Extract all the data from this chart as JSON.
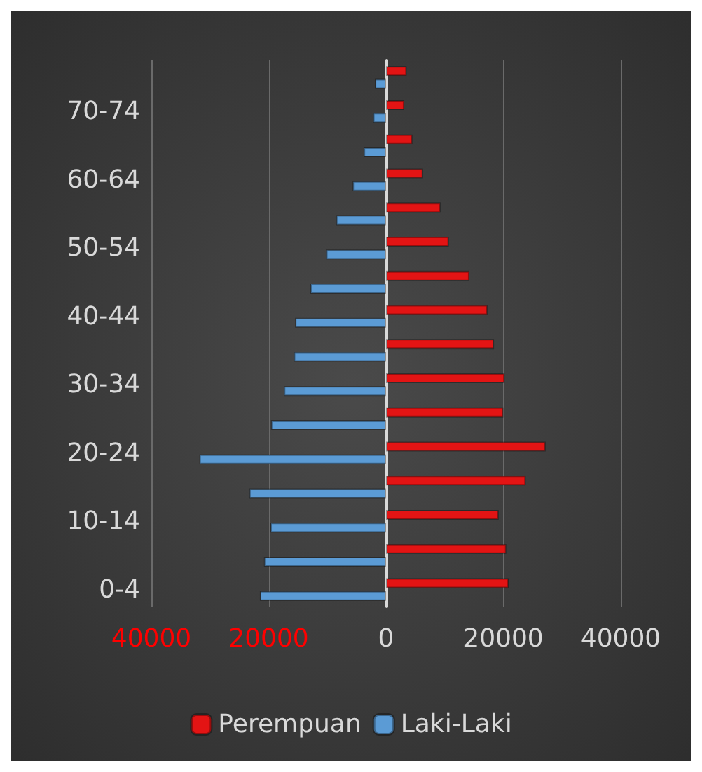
{
  "chart_data": {
    "type": "bar",
    "orientation": "horizontal",
    "categories": [
      null,
      "70-74",
      null,
      "60-64",
      null,
      "50-54",
      null,
      "40-44",
      null,
      "30-34",
      null,
      "20-24",
      null,
      "10-14",
      null,
      "0-4"
    ],
    "series": [
      {
        "name": "Perempuan",
        "color": "#e31414",
        "values": [
          3500,
          3100,
          4500,
          6300,
          9300,
          10700,
          14200,
          17300,
          18400,
          20200,
          20000,
          27200,
          23800,
          19200,
          20500,
          20900
        ]
      },
      {
        "name": "Laki-Laki",
        "color": "#5b9bd5",
        "values": [
          -1900,
          -2200,
          -3800,
          -5700,
          -8500,
          -10200,
          -12900,
          -15500,
          -15700,
          -17400,
          -19600,
          -31800,
          -23300,
          -19700,
          -20800,
          -21500
        ]
      }
    ],
    "xlim": [
      -40000,
      40000
    ],
    "xticks": [
      {
        "value": -40000,
        "label": "40000"
      },
      {
        "value": -20000,
        "label": "20000"
      },
      0,
      20000,
      40000
    ],
    "grid": "x",
    "legend": "bottom"
  }
}
